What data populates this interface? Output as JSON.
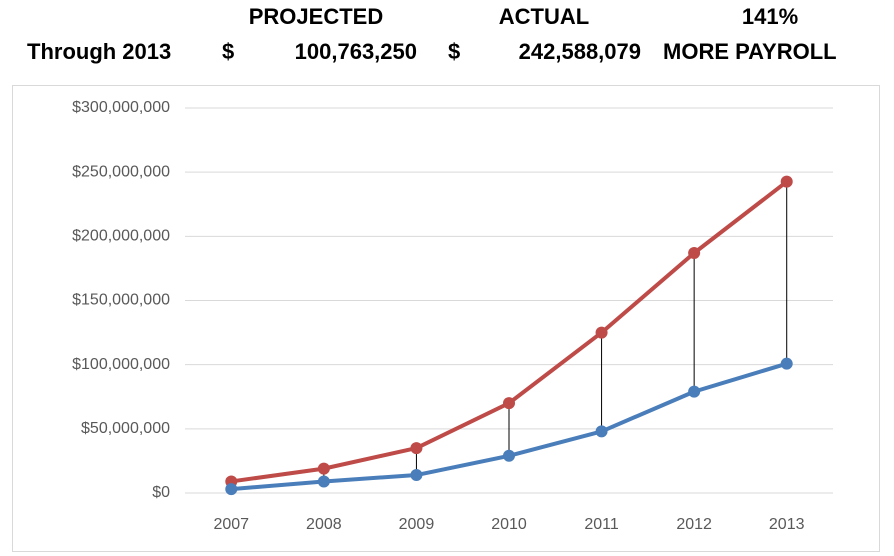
{
  "header": {
    "projected_label": "PROJECTED",
    "actual_label": "ACTUAL",
    "percent": "141%",
    "row_label": "Through 2013",
    "projected_currency": "$",
    "projected_total": "100,763,250",
    "actual_currency": "$",
    "actual_total": "242,588,079",
    "more_label": "MORE PAYROLL"
  },
  "chart_data": {
    "type": "line",
    "categories": [
      "2007",
      "2008",
      "2009",
      "2010",
      "2011",
      "2012",
      "2013"
    ],
    "series": [
      {
        "color": "#be4b48",
        "values": [
          9000000,
          19000000,
          35000000,
          70000000,
          125000000,
          187000000,
          242588079
        ]
      },
      {
        "color": "#4a7ebb",
        "values": [
          3000000,
          9000000,
          14000000,
          29000000,
          48000000,
          79000000,
          100763250
        ]
      }
    ],
    "ylim": [
      0,
      300000000
    ],
    "yticks": [
      {
        "value": 0,
        "label": "$0"
      },
      {
        "value": 50000000,
        "label": "$50,000,000"
      },
      {
        "value": 100000000,
        "label": "$100,000,000"
      },
      {
        "value": 150000000,
        "label": "$150,000,000"
      },
      {
        "value": 200000000,
        "label": "$200,000,000"
      },
      {
        "value": 250000000,
        "label": "$250,000,000"
      },
      {
        "value": 300000000,
        "label": "$300,000,000"
      }
    ],
    "grid": true,
    "drop_lines": true
  }
}
